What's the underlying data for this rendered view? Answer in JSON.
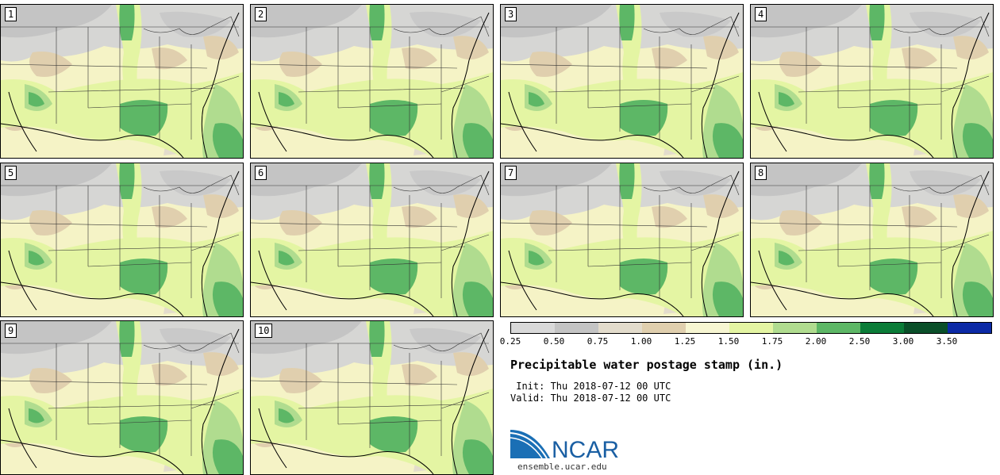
{
  "panels": [
    {
      "label": "1"
    },
    {
      "label": "2"
    },
    {
      "label": "3"
    },
    {
      "label": "4"
    },
    {
      "label": "5"
    },
    {
      "label": "6"
    },
    {
      "label": "7"
    },
    {
      "label": "8"
    },
    {
      "label": "9"
    },
    {
      "label": "10"
    }
  ],
  "legend": {
    "colors": [
      "#d9d9d9",
      "#c4c4c4",
      "#e3dccc",
      "#e0cfae",
      "#f7f6d2",
      "#e4f5a3",
      "#b0dc8f",
      "#5db766",
      "#0b7c38",
      "#0a4f29",
      "#0c2aa6"
    ],
    "ticks": [
      "0.25",
      "0.50",
      "0.75",
      "1.00",
      "1.25",
      "1.50",
      "1.75",
      "2.00",
      "2.50",
      "3.00",
      "3.50"
    ]
  },
  "title": "Precipitable water postage stamp (in.)",
  "init_line": " Init: Thu 2018-07-12 00 UTC",
  "valid_line": "Valid: Thu 2018-07-12 00 UTC",
  "logo": {
    "text": "NCAR",
    "url": "ensemble.ucar.edu",
    "color": "#1a5fa3"
  }
}
